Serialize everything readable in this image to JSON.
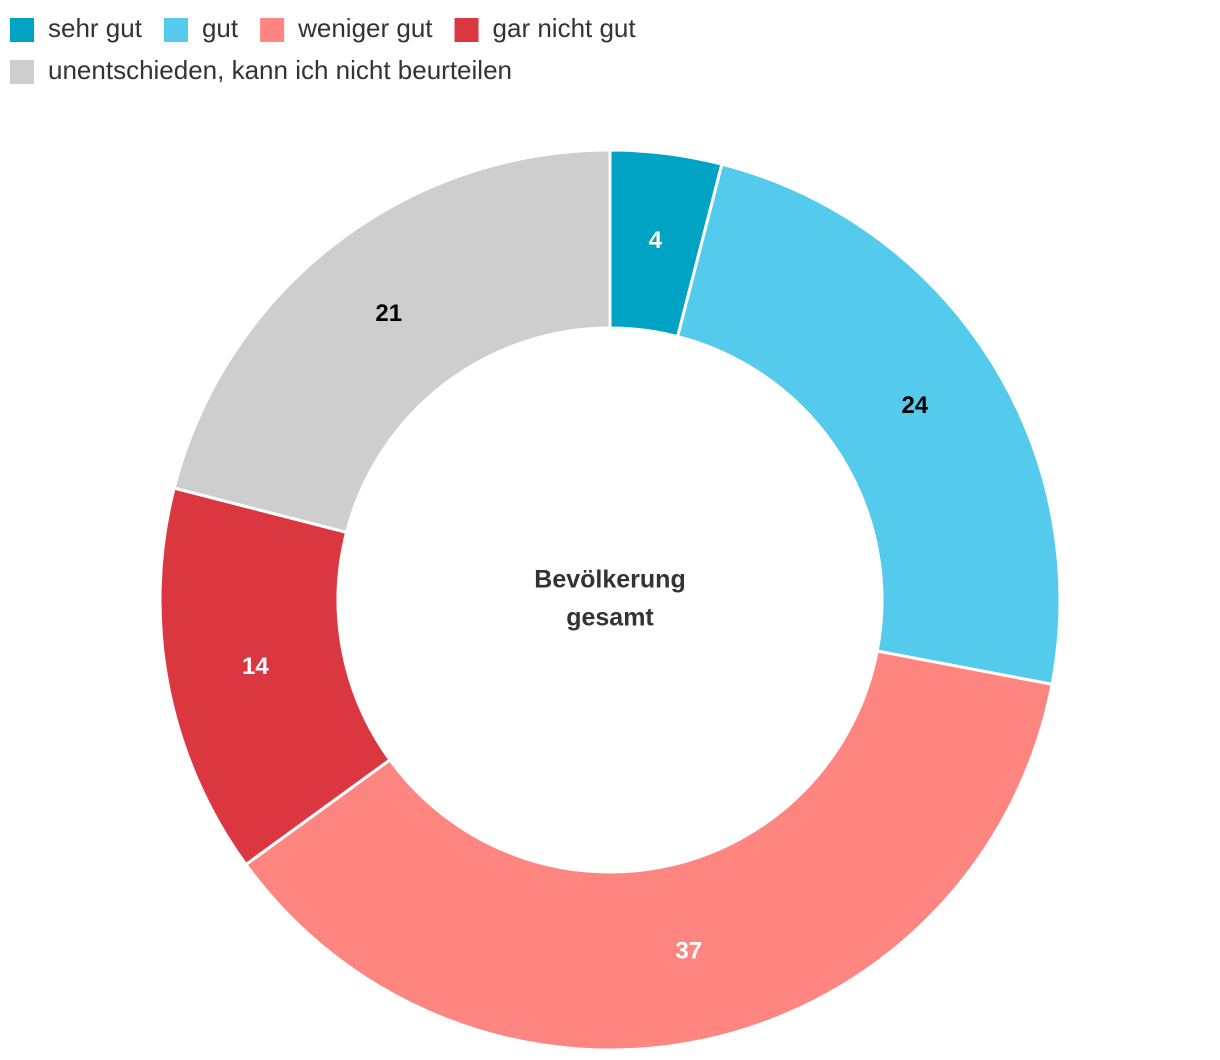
{
  "chart_data": {
    "type": "donut",
    "center_label": [
      "Bevölkerung",
      "gesamt"
    ],
    "categories": [
      "sehr gut",
      "gut",
      "weniger gut",
      "gar nicht gut",
      "unentschieden, kann ich nicht beurteilen"
    ],
    "values": [
      4,
      24,
      37,
      14,
      21
    ],
    "colors": [
      "#00a3c4",
      "#54cbec",
      "#ff8580",
      "#db3740",
      "#cecece"
    ],
    "label_colors": [
      "#ffffff",
      "#000000",
      "#ffffff",
      "#ffffff",
      "#000000"
    ],
    "legend": "top-left"
  }
}
